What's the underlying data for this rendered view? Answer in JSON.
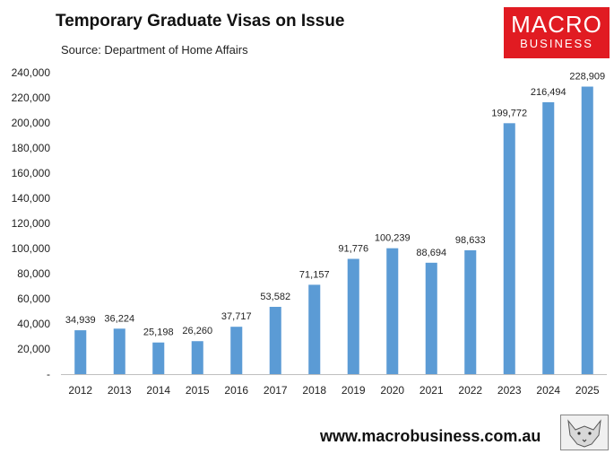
{
  "header": {
    "title": "Temporary Graduate Visas on Issue",
    "subtitle": "Source: Department of Home Affairs"
  },
  "logo": {
    "line1": "MACRO",
    "line2": "BUSINESS",
    "color": "#e11b22"
  },
  "footer": {
    "url": "www.macrobusiness.com.au"
  },
  "fox_image": "fox-sketch-icon",
  "chart_data": {
    "type": "bar",
    "title": "Temporary Graduate Visas on Issue",
    "subtitle": "Source: Department of Home Affairs",
    "categories": [
      "2012",
      "2013",
      "2014",
      "2015",
      "2016",
      "2017",
      "2018",
      "2019",
      "2020",
      "2021",
      "2022",
      "2023",
      "2024",
      "2025"
    ],
    "values": [
      34939,
      36224,
      25198,
      26260,
      37717,
      53582,
      71157,
      91776,
      100239,
      88694,
      98633,
      199772,
      216494,
      228909
    ],
    "data_labels": [
      "34,939",
      "36,224",
      "25,198",
      "26,260",
      "37,717",
      "53,582",
      "71,157",
      "91,776",
      "100,239",
      "88,694",
      "98,633",
      "199,772",
      "216,494",
      "228,909"
    ],
    "ylim": [
      0,
      240000
    ],
    "yticks": [
      0,
      20000,
      40000,
      60000,
      80000,
      100000,
      120000,
      140000,
      160000,
      180000,
      200000,
      220000,
      240000
    ],
    "ytick_labels": [
      "-",
      "20,000",
      "40,000",
      "60,000",
      "80,000",
      "100,000",
      "120,000",
      "140,000",
      "160,000",
      "180,000",
      "200,000",
      "220,000",
      "240,000"
    ],
    "bar_color": "#5b9bd5",
    "grid": false,
    "legend": "none"
  }
}
